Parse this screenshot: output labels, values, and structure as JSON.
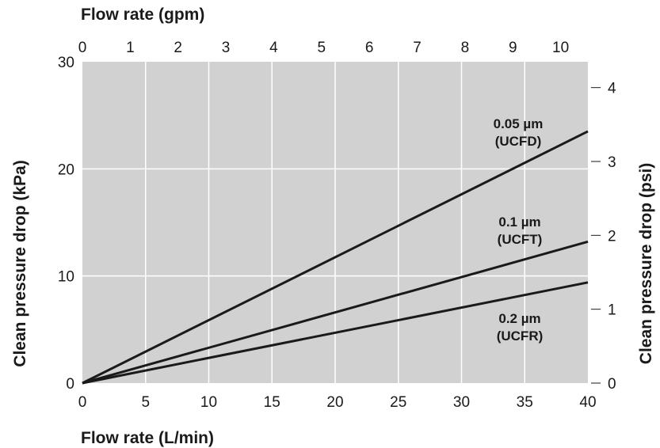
{
  "chart_data": {
    "type": "line",
    "x_axis_bottom": {
      "label": "Flow rate (L/min)",
      "range": [
        0,
        40
      ],
      "ticks": [
        "0",
        "5",
        "10",
        "15",
        "20",
        "25",
        "30",
        "35",
        "40"
      ]
    },
    "x_axis_top": {
      "label": "Flow rate (gpm)",
      "range": [
        0,
        10.57
      ],
      "ticks": [
        "0",
        "1",
        "2",
        "3",
        "4",
        "5",
        "6",
        "7",
        "8",
        "9",
        "10"
      ]
    },
    "y_axis_left": {
      "label": "Clean pressure drop (kPa)",
      "range": [
        0,
        30
      ],
      "ticks": [
        "0",
        "10",
        "20",
        "30"
      ]
    },
    "y_axis_right": {
      "label": "Clean pressure drop (psi)",
      "range": [
        0,
        4.35
      ],
      "ticks": [
        "0",
        "1",
        "2",
        "3",
        "4"
      ]
    },
    "grid": true,
    "series": [
      {
        "label_line1": "0.05 µm",
        "label_line2": "(UCFD)",
        "x": [
          0,
          40
        ],
        "y": [
          0,
          23.5
        ]
      },
      {
        "label_line1": "0.1 µm",
        "label_line2": "(UCFT)",
        "x": [
          0,
          40
        ],
        "y": [
          0,
          13.2
        ]
      },
      {
        "label_line1": "0.2 µm",
        "label_line2": "(UCFR)",
        "x": [
          0,
          40
        ],
        "y": [
          0,
          9.4
        ]
      }
    ],
    "colors": {
      "plot_background": "#d1d1d1",
      "grid": "#ffffff",
      "line": "#1a1a1a"
    }
  }
}
